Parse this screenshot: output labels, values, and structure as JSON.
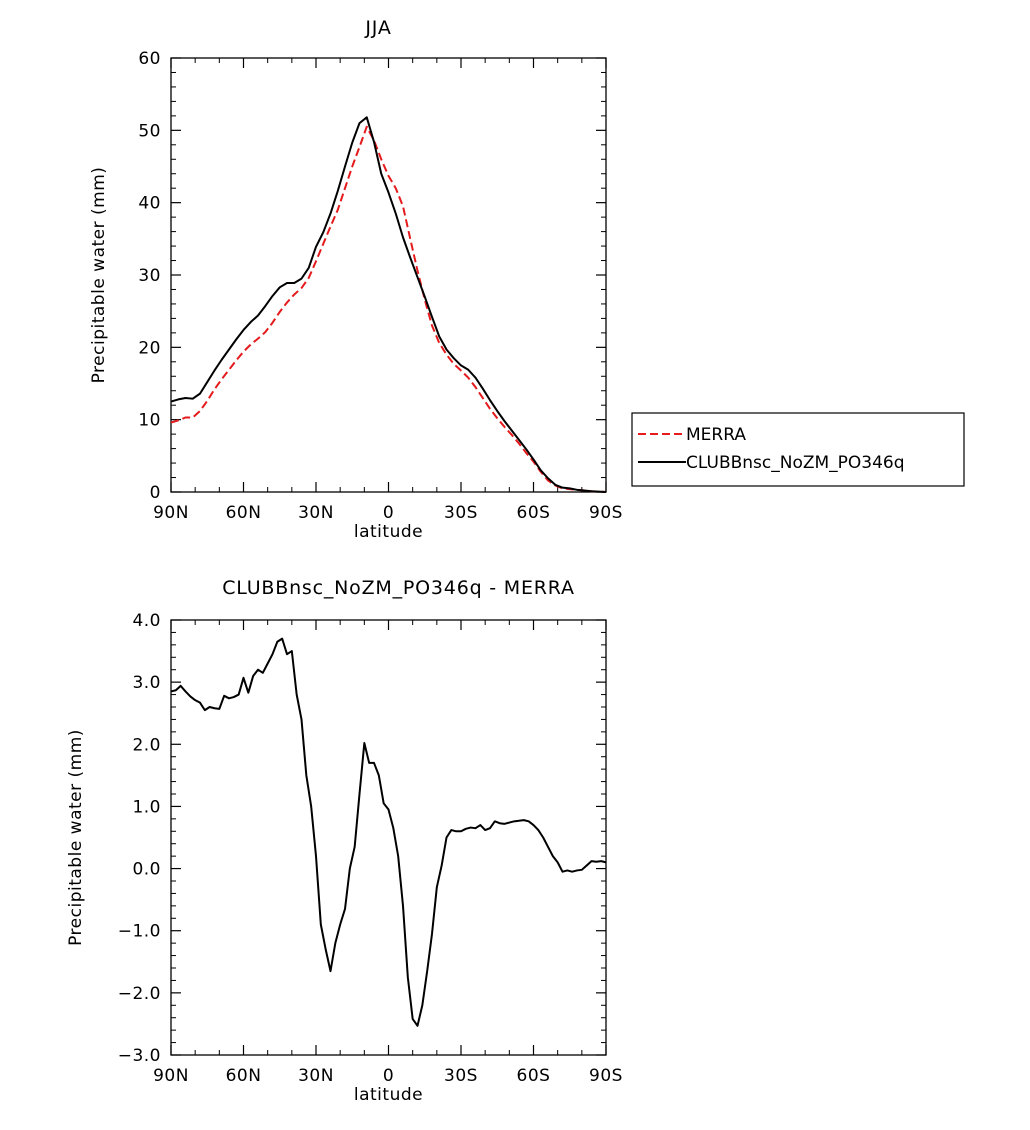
{
  "chart_data": [
    {
      "type": "line",
      "title": "JJA",
      "xlabel": "latitude",
      "ylabel": "Precipitable water (mm)",
      "xlim": [
        90,
        -90
      ],
      "ylim": [
        0,
        60
      ],
      "x_tick_values": [
        90,
        60,
        30,
        0,
        -30,
        -60,
        -90
      ],
      "x_tick_labels": [
        "90N",
        "60N",
        "30N",
        "0",
        "30S",
        "60S",
        "90S"
      ],
      "y_tick_values": [
        0,
        10,
        20,
        30,
        40,
        50,
        60
      ],
      "y_tick_labels": [
        "0",
        "10",
        "20",
        "30",
        "40",
        "50",
        "60"
      ],
      "legend": {
        "position": "right",
        "entries": [
          "MERRA",
          "CLUBBnsc_NoZM_PO346q"
        ]
      },
      "series": [
        {
          "name": "MERRA",
          "color": "#e41a1c",
          "dash": "dashed",
          "x": [
            90,
            87,
            84,
            81,
            78,
            75,
            72,
            69,
            66,
            63,
            60,
            57,
            54,
            51,
            48,
            45,
            42,
            39,
            36,
            33,
            30,
            27,
            24,
            21,
            18,
            15,
            12,
            9,
            6,
            3,
            0,
            -3,
            -6,
            -9,
            -12,
            -15,
            -18,
            -21,
            -24,
            -27,
            -30,
            -33,
            -36,
            -39,
            -42,
            -45,
            -48,
            -51,
            -54,
            -57,
            -60,
            -63,
            -66,
            -69,
            -72,
            -75,
            -78,
            -81,
            -84,
            -87,
            -90
          ],
          "y": [
            9.6,
            9.9,
            10.3,
            10.3,
            11.2,
            12.6,
            14.2,
            15.6,
            16.9,
            18.2,
            19.4,
            20.4,
            21.2,
            22.1,
            23.4,
            24.9,
            26.2,
            27.3,
            28.2,
            29.6,
            31.9,
            34.3,
            36.7,
            39.0,
            42.0,
            45.0,
            47.7,
            50.5,
            48.6,
            46.0,
            43.7,
            42.0,
            39.5,
            35.0,
            30.6,
            26.6,
            23.0,
            20.6,
            19.0,
            17.7,
            16.8,
            15.8,
            14.5,
            13.0,
            11.5,
            10.2,
            9.0,
            7.9,
            6.7,
            5.4,
            4.2,
            2.8,
            1.6,
            0.9,
            0.5,
            0.4,
            0.3,
            0.2,
            0.1,
            0.05,
            0.0
          ]
        },
        {
          "name": "CLUBBnsc_NoZM_PO346q",
          "color": "#000000",
          "dash": "solid",
          "x": [
            90,
            87,
            84,
            81,
            78,
            75,
            72,
            69,
            66,
            63,
            60,
            57,
            54,
            51,
            48,
            45,
            42,
            39,
            36,
            33,
            30,
            27,
            24,
            21,
            18,
            15,
            12,
            9,
            6,
            3,
            0,
            -3,
            -6,
            -9,
            -12,
            -15,
            -18,
            -21,
            -24,
            -27,
            -30,
            -33,
            -36,
            -39,
            -42,
            -45,
            -48,
            -51,
            -54,
            -57,
            -60,
            -63,
            -66,
            -69,
            -72,
            -75,
            -78,
            -81,
            -84,
            -87,
            -90
          ],
          "y": [
            12.5,
            12.8,
            13.0,
            12.9,
            13.6,
            15.2,
            16.8,
            18.3,
            19.7,
            21.1,
            22.4,
            23.5,
            24.4,
            25.7,
            27.1,
            28.3,
            28.9,
            28.9,
            29.5,
            31.0,
            33.9,
            35.9,
            38.5,
            41.6,
            45.0,
            48.3,
            51.0,
            51.8,
            48.4,
            44.0,
            41.4,
            38.5,
            35.2,
            32.4,
            29.7,
            27.0,
            24.2,
            21.5,
            19.7,
            18.5,
            17.5,
            16.9,
            15.8,
            14.3,
            12.7,
            11.2,
            9.8,
            8.5,
            7.2,
            5.9,
            4.5,
            3.0,
            1.9,
            1.0,
            0.6,
            0.5,
            0.3,
            0.2,
            0.1,
            0.05,
            0.0
          ]
        }
      ]
    },
    {
      "type": "line",
      "title": "CLUBBnsc_NoZM_PO346q - MERRA",
      "xlabel": "latitude",
      "ylabel": "Precipitable water (mm)",
      "xlim": [
        90,
        -90
      ],
      "ylim": [
        -3,
        4
      ],
      "x_tick_values": [
        90,
        60,
        30,
        0,
        -30,
        -60,
        -90
      ],
      "x_tick_labels": [
        "90N",
        "60N",
        "30N",
        "0",
        "30S",
        "60S",
        "90S"
      ],
      "y_tick_values": [
        -3,
        -2,
        -1,
        0,
        1,
        2,
        3,
        4
      ],
      "y_tick_labels": [
        "−3.0",
        "−2.0",
        "−1.0",
        "0.0",
        "1.0",
        "2.0",
        "3.0",
        "4.0"
      ],
      "series": [
        {
          "color": "#000000",
          "dash": "solid",
          "x": [
            90,
            88,
            86,
            84,
            82,
            80,
            78,
            76,
            74,
            72,
            70,
            68,
            66,
            64,
            62,
            60,
            58,
            56,
            54,
            52,
            50,
            48,
            46,
            44,
            42,
            40,
            38,
            36,
            34,
            32,
            30,
            28,
            26,
            24,
            22,
            20,
            18,
            16,
            14,
            12,
            10,
            8,
            6,
            4,
            2,
            0,
            -2,
            -4,
            -6,
            -8,
            -10,
            -12,
            -14,
            -16,
            -18,
            -20,
            -22,
            -24,
            -26,
            -28,
            -30,
            -32,
            -34,
            -36,
            -38,
            -40,
            -42,
            -44,
            -46,
            -48,
            -50,
            -52,
            -54,
            -56,
            -58,
            -60,
            -62,
            -64,
            -66,
            -68,
            -70,
            -72,
            -74,
            -76,
            -78,
            -80,
            -82,
            -84,
            -86,
            -88,
            -90
          ],
          "y": [
            2.85,
            2.87,
            2.94,
            2.85,
            2.77,
            2.71,
            2.67,
            2.55,
            2.6,
            2.58,
            2.57,
            2.78,
            2.74,
            2.76,
            2.8,
            3.07,
            2.83,
            3.1,
            3.2,
            3.15,
            3.3,
            3.45,
            3.65,
            3.7,
            3.45,
            3.5,
            2.8,
            2.4,
            1.5,
            1.0,
            0.2,
            -0.9,
            -1.3,
            -1.65,
            -1.2,
            -0.9,
            -0.65,
            0.0,
            0.35,
            1.2,
            2.02,
            1.7,
            1.7,
            1.5,
            1.05,
            0.95,
            0.65,
            0.2,
            -0.6,
            -1.75,
            -2.42,
            -2.53,
            -2.2,
            -1.65,
            -1.05,
            -0.3,
            0.05,
            0.5,
            0.62,
            0.6,
            0.6,
            0.64,
            0.66,
            0.65,
            0.7,
            0.62,
            0.65,
            0.76,
            0.73,
            0.72,
            0.74,
            0.76,
            0.77,
            0.78,
            0.76,
            0.7,
            0.62,
            0.5,
            0.35,
            0.2,
            0.1,
            -0.05,
            -0.03,
            -0.05,
            -0.03,
            -0.02,
            0.05,
            0.12,
            0.11,
            0.12,
            0.1
          ]
        }
      ]
    }
  ]
}
